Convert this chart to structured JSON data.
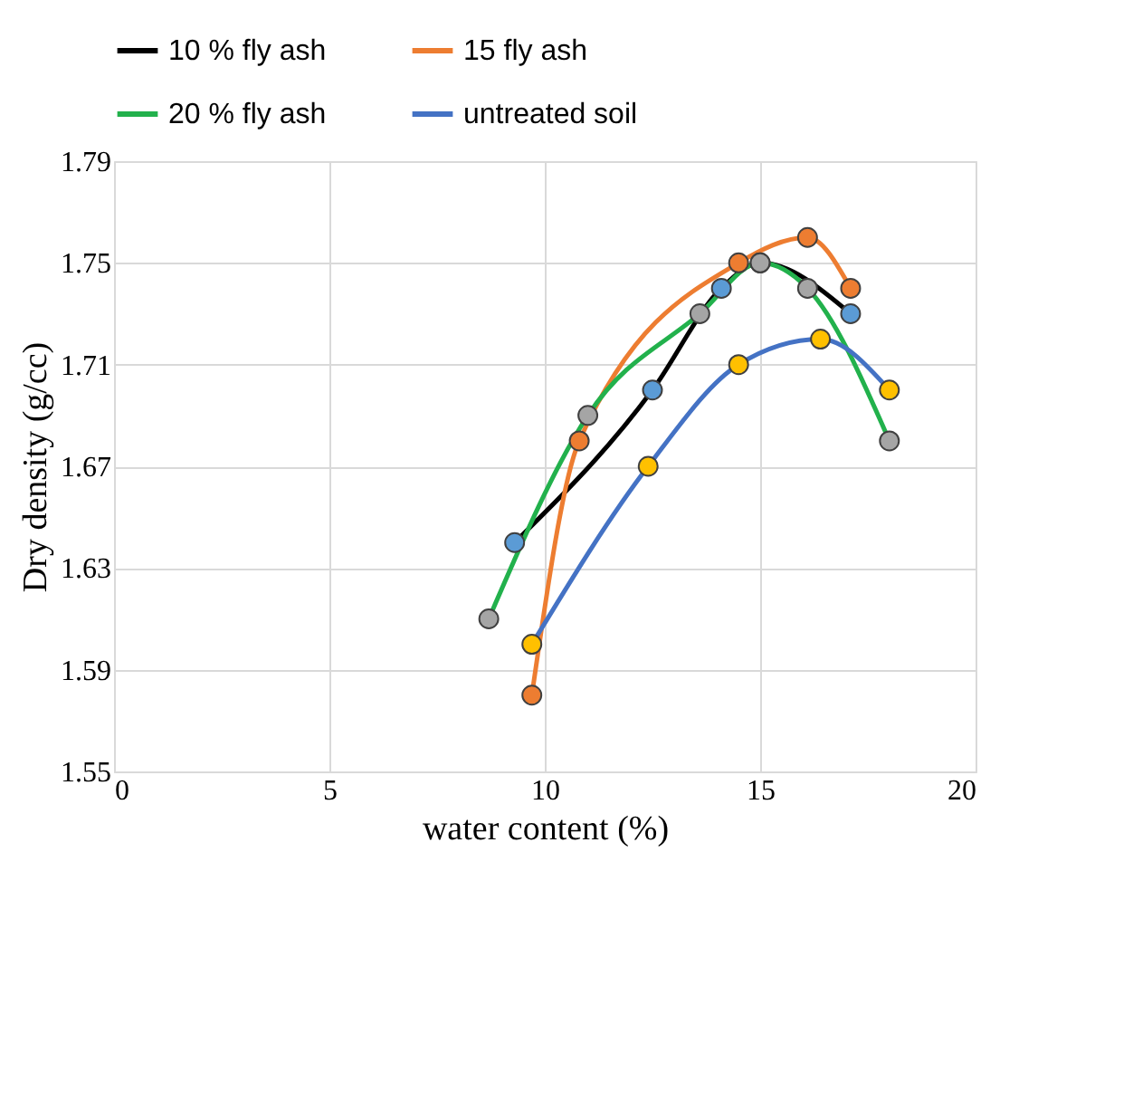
{
  "chart_data": {
    "type": "line",
    "xlabel": "water content (%)",
    "ylabel": "Dry density  (g/cc)",
    "xlim": [
      0,
      20
    ],
    "xticks": [
      0,
      5,
      10,
      15,
      20
    ],
    "ylim": [
      1.55,
      1.79
    ],
    "yticks": [
      1.55,
      1.59,
      1.63,
      1.67,
      1.71,
      1.75,
      1.79
    ],
    "grid": true,
    "legend": "top",
    "marker": "circle",
    "line_style": "solid",
    "series": [
      {
        "name": "10 % fly ash",
        "color": "#000000",
        "colors": [
          "#5b9bd5",
          "#5b9bd5",
          "#5b9bd5",
          "#5b9bd5",
          "#5b9bd5"
        ],
        "x": [
          9.3,
          12.5,
          14.1,
          15.0,
          17.1
        ],
        "values": [
          1.64,
          1.7,
          1.74,
          1.75,
          1.73
        ]
      },
      {
        "name": "15 fly ash",
        "color": "#ed7d31",
        "colors": [
          "#ed7d31",
          "#ed7d31",
          "#ed7d31",
          "#ed7d31",
          "#ed7d31"
        ],
        "x": [
          9.7,
          10.8,
          14.5,
          16.1,
          17.1
        ],
        "values": [
          1.58,
          1.68,
          1.75,
          1.76,
          1.74
        ]
      },
      {
        "name": "20 % fly ash",
        "color": "#22b14c",
        "colors": [
          "#a5a5a5",
          "#a5a5a5",
          "#a5a5a5",
          "#a5a5a5",
          "#a5a5a5",
          "#a5a5a5"
        ],
        "x": [
          8.7,
          11.0,
          13.6,
          15.0,
          16.1,
          18.0
        ],
        "values": [
          1.61,
          1.69,
          1.73,
          1.75,
          1.74,
          1.68
        ]
      },
      {
        "name": "untreated soil",
        "color": "#4472c4",
        "colors": [
          "#ffc000",
          "#ffc000",
          "#ffc000",
          "#ffc000",
          "#ffc000"
        ],
        "x": [
          9.7,
          12.4,
          14.5,
          16.4,
          18.0
        ],
        "values": [
          1.6,
          1.67,
          1.71,
          1.72,
          1.7
        ]
      }
    ]
  }
}
